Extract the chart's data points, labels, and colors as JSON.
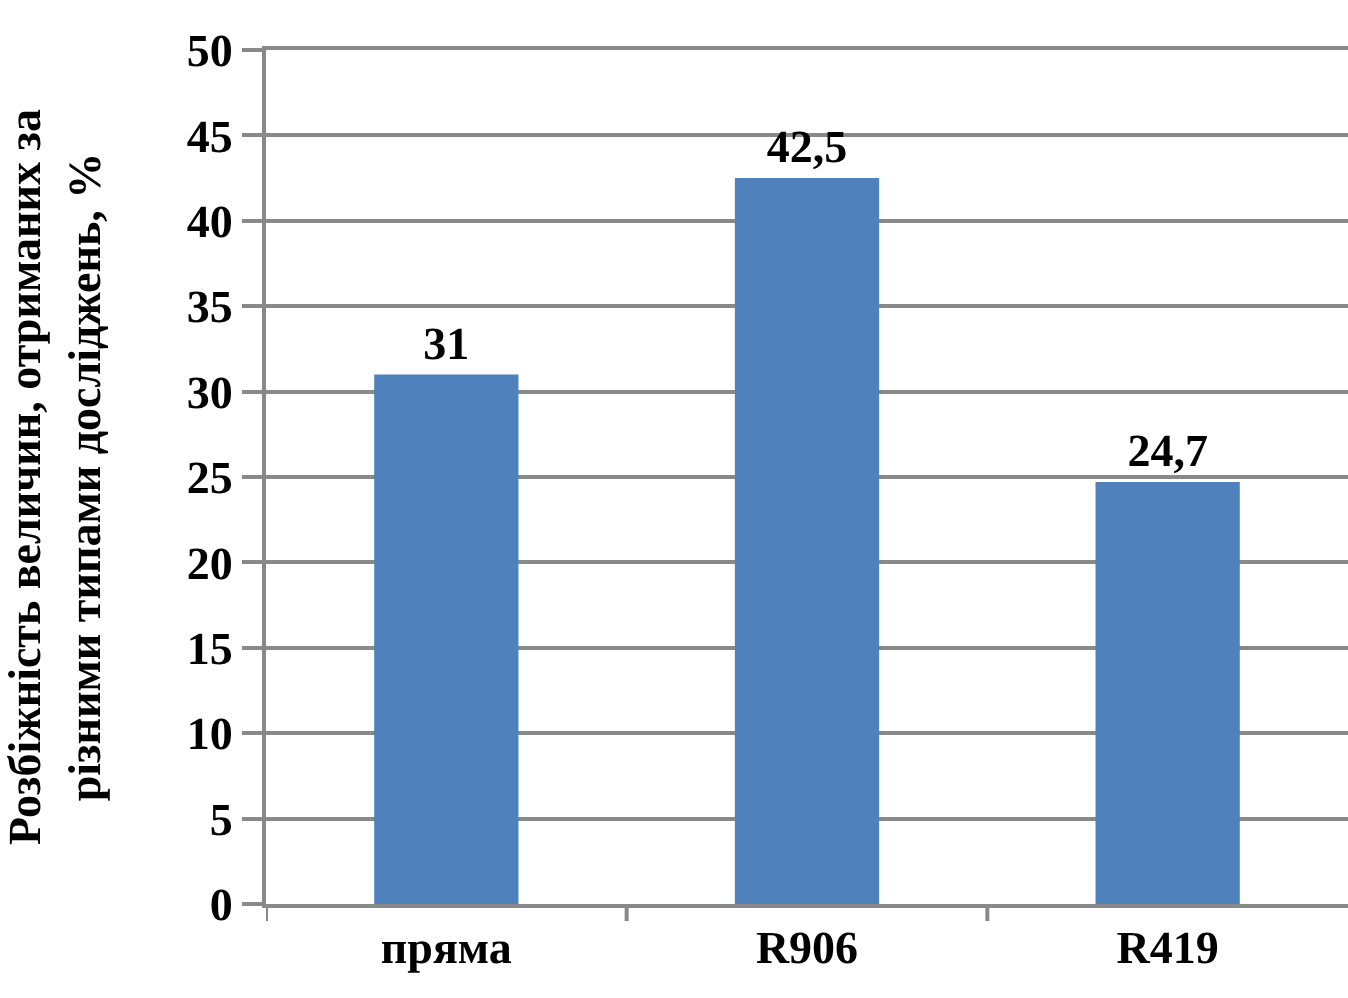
{
  "chart_data": {
    "type": "bar",
    "ylabel": "Розбіжність величин, отриманих за\nрізними типами досліджень, %",
    "categories": [
      "пряма",
      "R906",
      "R419"
    ],
    "values": [
      31,
      42.5,
      24.7
    ],
    "value_labels": [
      "31",
      "42,5",
      "24,7"
    ],
    "color": "#4f81bd",
    "ylim": [
      0,
      50
    ],
    "yticks": [
      0,
      5,
      10,
      15,
      20,
      25,
      30,
      35,
      40,
      45,
      50
    ],
    "grid": "y"
  }
}
